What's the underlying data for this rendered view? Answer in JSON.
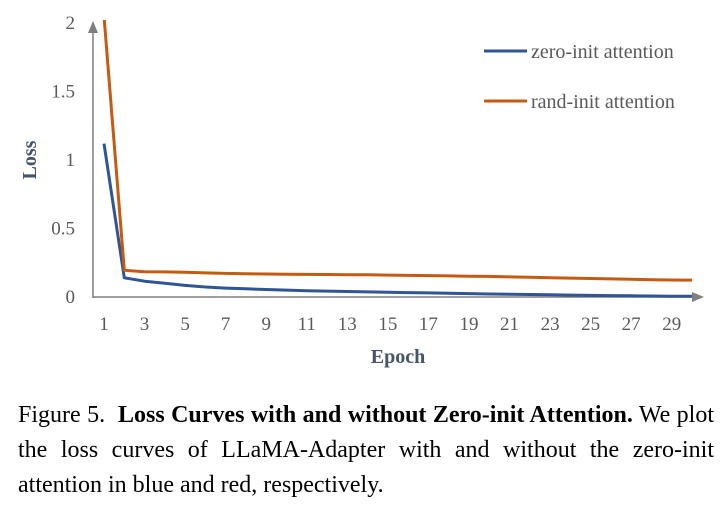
{
  "chart_data": {
    "type": "line",
    "xlabel": "Epoch",
    "ylabel": "Loss",
    "xlim": [
      1,
      30
    ],
    "ylim": [
      0,
      2
    ],
    "x_ticks": [
      1,
      3,
      5,
      7,
      9,
      11,
      13,
      15,
      17,
      19,
      21,
      23,
      25,
      27,
      29
    ],
    "y_ticks": [
      "0",
      "0.5",
      "1",
      "1.5",
      "2"
    ],
    "legend_position": "top-right",
    "grid": false,
    "x": [
      1,
      2,
      3,
      4,
      5,
      6,
      7,
      8,
      9,
      10,
      11,
      12,
      13,
      14,
      15,
      16,
      17,
      18,
      19,
      20,
      21,
      22,
      23,
      24,
      25,
      26,
      27,
      28,
      29,
      30
    ],
    "series": [
      {
        "name": "zero-init attention",
        "color": "#2f5597",
        "values": [
          1.12,
          0.14,
          0.115,
          0.1,
          0.085,
          0.073,
          0.065,
          0.06,
          0.055,
          0.05,
          0.046,
          0.043,
          0.04,
          0.037,
          0.034,
          0.032,
          0.03,
          0.028,
          0.025,
          0.022,
          0.02,
          0.018,
          0.016,
          0.014,
          0.012,
          0.01,
          0.009,
          0.007,
          0.006,
          0.005
        ]
      },
      {
        "name": "rand-init attention",
        "color": "#c55a11",
        "values": [
          2.05,
          0.195,
          0.185,
          0.183,
          0.18,
          0.176,
          0.172,
          0.17,
          0.168,
          0.166,
          0.165,
          0.164,
          0.163,
          0.162,
          0.16,
          0.158,
          0.156,
          0.154,
          0.152,
          0.15,
          0.147,
          0.144,
          0.141,
          0.138,
          0.135,
          0.132,
          0.129,
          0.126,
          0.124,
          0.123
        ]
      }
    ]
  },
  "caption": {
    "label": "Figure 5.",
    "title": "Loss Curves with and without Zero-init Attention.",
    "body": "We plot the loss curves of LLaMA-Adapter with and without the zero-init attention in blue and red, respectively."
  }
}
